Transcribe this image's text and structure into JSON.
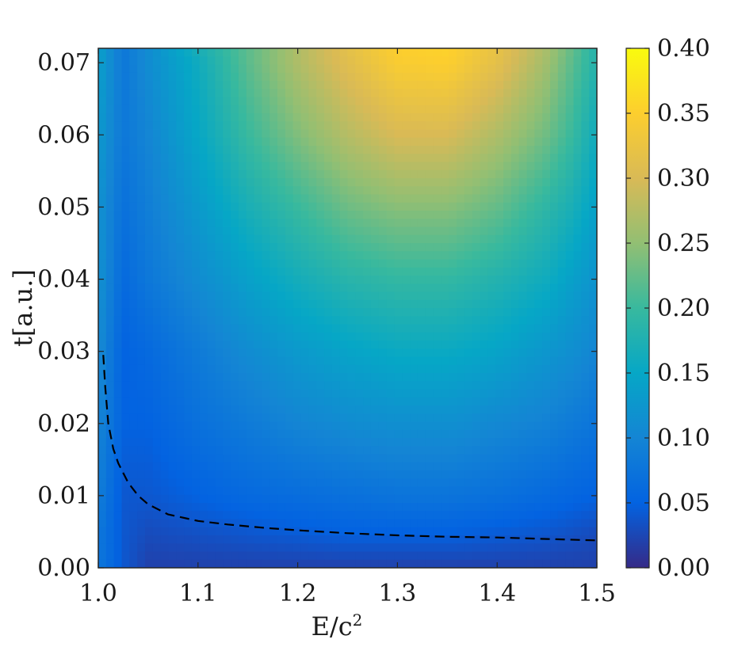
{
  "chart_data": {
    "type": "heatmap",
    "title": "",
    "xlabel": "E/c",
    "xlabel_superscript": "2",
    "ylabel": "t[a.u.]",
    "xlim": [
      1.0,
      1.5
    ],
    "ylim": [
      0.0,
      0.072
    ],
    "x_ticks": [
      1.0,
      1.1,
      1.2,
      1.3,
      1.4,
      1.5
    ],
    "x_tick_labels": [
      "1.0",
      "1.1",
      "1.2",
      "1.3",
      "1.4",
      "1.5"
    ],
    "y_ticks": [
      0.0,
      0.01,
      0.02,
      0.03,
      0.04,
      0.05,
      0.06,
      0.07
    ],
    "y_tick_labels": [
      "0.00",
      "0.01",
      "0.02",
      "0.03",
      "0.04",
      "0.05",
      "0.06",
      "0.07"
    ],
    "colorbar": {
      "range": [
        0.0,
        0.4
      ],
      "ticks": [
        0.0,
        0.05,
        0.1,
        0.15,
        0.2,
        0.25,
        0.3,
        0.35,
        0.4
      ],
      "tick_labels": [
        "0.00",
        "0.05",
        "0.10",
        "0.15",
        "0.20",
        "0.25",
        "0.30",
        "0.35",
        "0.40"
      ],
      "colormap": "parula"
    },
    "colormap_stops": [
      "#352a87",
      "#0363e1",
      "#1485d4",
      "#06a7c6",
      "#38b99e",
      "#92bf73",
      "#d9ba56",
      "#fcce2e",
      "#f9fb0e"
    ],
    "field_samples": {
      "x": [
        1.0,
        1.025,
        1.05,
        1.1,
        1.15,
        1.2,
        1.25,
        1.3,
        1.35,
        1.4,
        1.45,
        1.475,
        1.5
      ],
      "y": [
        0.0,
        0.005,
        0.01,
        0.02,
        0.03,
        0.04,
        0.05,
        0.06,
        0.07,
        0.072
      ],
      "values": [
        [
          0.08,
          0.04,
          0.02,
          0.02,
          0.02,
          0.02,
          0.02,
          0.02,
          0.02,
          0.02,
          0.02,
          0.02,
          0.02
        ],
        [
          0.08,
          0.04,
          0.03,
          0.035,
          0.04,
          0.045,
          0.05,
          0.05,
          0.05,
          0.045,
          0.04,
          0.035,
          0.03
        ],
        [
          0.09,
          0.04,
          0.04,
          0.05,
          0.06,
          0.065,
          0.07,
          0.075,
          0.075,
          0.07,
          0.06,
          0.055,
          0.05
        ],
        [
          0.1,
          0.05,
          0.05,
          0.07,
          0.085,
          0.1,
          0.11,
          0.115,
          0.115,
          0.105,
          0.095,
          0.085,
          0.075
        ],
        [
          0.11,
          0.05,
          0.06,
          0.085,
          0.11,
          0.13,
          0.145,
          0.155,
          0.155,
          0.145,
          0.125,
          0.115,
          0.1
        ],
        [
          0.12,
          0.06,
          0.08,
          0.11,
          0.14,
          0.165,
          0.185,
          0.195,
          0.195,
          0.18,
          0.16,
          0.14,
          0.12
        ],
        [
          0.12,
          0.07,
          0.09,
          0.13,
          0.17,
          0.2,
          0.23,
          0.245,
          0.245,
          0.225,
          0.19,
          0.17,
          0.14
        ],
        [
          0.13,
          0.08,
          0.1,
          0.15,
          0.2,
          0.24,
          0.275,
          0.3,
          0.3,
          0.27,
          0.23,
          0.2,
          0.16
        ],
        [
          0.14,
          0.08,
          0.11,
          0.16,
          0.22,
          0.27,
          0.31,
          0.345,
          0.35,
          0.315,
          0.26,
          0.22,
          0.18
        ],
        [
          0.14,
          0.08,
          0.11,
          0.17,
          0.22,
          0.27,
          0.315,
          0.35,
          0.355,
          0.32,
          0.265,
          0.225,
          0.18
        ]
      ]
    },
    "series": [
      {
        "style": "dashed",
        "color": "#000000",
        "x": [
          1.005,
          1.007,
          1.01,
          1.015,
          1.02,
          1.03,
          1.04,
          1.05,
          1.07,
          1.1,
          1.13,
          1.17,
          1.2,
          1.25,
          1.3,
          1.35,
          1.4,
          1.45,
          1.5
        ],
        "y": [
          0.0295,
          0.025,
          0.02,
          0.0165,
          0.0145,
          0.0118,
          0.01,
          0.0088,
          0.0074,
          0.0065,
          0.006,
          0.0055,
          0.0052,
          0.0048,
          0.0045,
          0.0043,
          0.0042,
          0.004,
          0.0038
        ]
      }
    ]
  }
}
